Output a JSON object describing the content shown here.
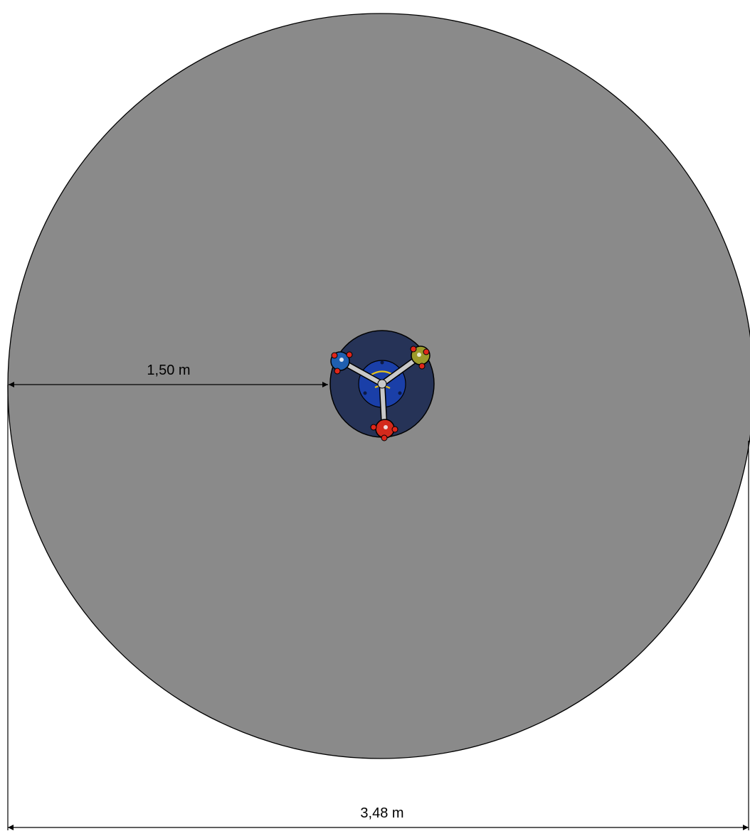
{
  "dimensions": {
    "radius_label": "1,50 m",
    "diameter_label": "3,48 m"
  },
  "colors": {
    "safety_area": "#8a8a8a",
    "outline": "#000000",
    "base_disc": "#263357",
    "hub_ring": "#1a3fa8",
    "hub_center": "#c9c9c9",
    "arm": "#c8c8c8",
    "seat_blue": "#1f5fb0",
    "seat_yellow": "#9c9a2a",
    "seat_red": "#d42a1c",
    "accent_red": "#e0261a",
    "accent_yellow": "#e6c21a"
  },
  "icons": {
    "equipment": "spinner-top-view-icon"
  }
}
